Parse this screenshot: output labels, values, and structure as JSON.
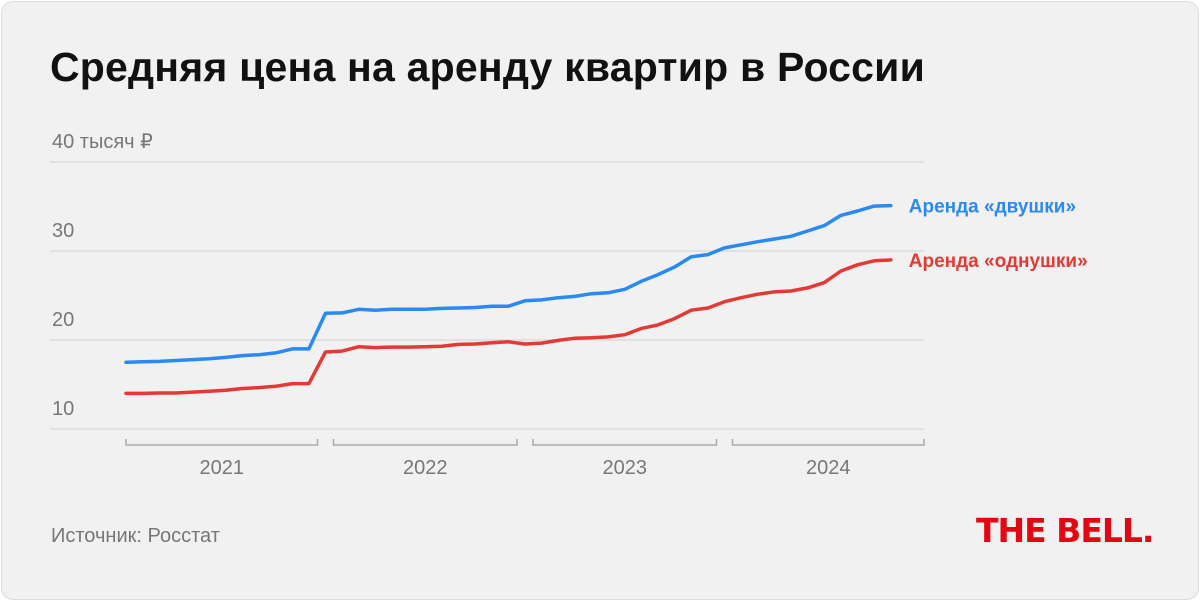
{
  "title": "Средняя цена на аренду квартир в России",
  "source": "Источник: Росстат",
  "logo": "THE BELL.",
  "colors": {
    "background": "#f1f1f1",
    "grid": "#dcdcdc",
    "series_two_room": "#2a8af4",
    "series_one_room": "#e53935",
    "axis_text": "#777777",
    "logo": "#e30613"
  },
  "chart_data": {
    "type": "line",
    "title": "Средняя цена на аренду квартир в России",
    "ylabel": "40 тысяч ₽",
    "ylim": [
      10,
      40
    ],
    "yticks": [
      10,
      20,
      30,
      40
    ],
    "ytick_labels": [
      "10",
      "20",
      "30",
      "40 тысяч ₽"
    ],
    "grid": true,
    "xlim": [
      0,
      48
    ],
    "year_groups": [
      {
        "label": "2021",
        "start": 0,
        "end": 12
      },
      {
        "label": "2022",
        "start": 12,
        "end": 24
      },
      {
        "label": "2023",
        "start": 24,
        "end": 36
      },
      {
        "label": "2024",
        "start": 36,
        "end": 48
      }
    ],
    "x": [
      0,
      1,
      2,
      3,
      4,
      5,
      6,
      7,
      8,
      9,
      10,
      11,
      12,
      13,
      14,
      15,
      16,
      17,
      18,
      19,
      20,
      21,
      22,
      23,
      24,
      25,
      26,
      27,
      28,
      29,
      30,
      31,
      32,
      33,
      34,
      35,
      36,
      37,
      38,
      39,
      40,
      41,
      42,
      43,
      44,
      45,
      46
    ],
    "series": [
      {
        "name": "Аренда «двушки»",
        "color": "#2a8af4",
        "values": [
          17.5,
          17.55,
          17.6,
          17.7,
          17.8,
          17.9,
          18.05,
          18.25,
          18.35,
          18.55,
          19.0,
          19.0,
          23.0,
          23.05,
          23.45,
          23.35,
          23.45,
          23.45,
          23.45,
          23.55,
          23.6,
          23.65,
          23.8,
          23.8,
          24.4,
          24.5,
          24.75,
          24.9,
          25.2,
          25.3,
          25.7,
          26.6,
          27.35,
          28.2,
          29.35,
          29.6,
          30.35,
          30.7,
          31.05,
          31.35,
          31.65,
          32.25,
          32.85,
          34.0,
          34.5,
          35.05,
          35.1
        ]
      },
      {
        "name": "Аренда «однушки»",
        "color": "#e53935",
        "values": [
          14.0,
          14.0,
          14.05,
          14.05,
          14.15,
          14.25,
          14.35,
          14.55,
          14.65,
          14.8,
          15.1,
          15.1,
          18.65,
          18.75,
          19.25,
          19.15,
          19.2,
          19.2,
          19.25,
          19.3,
          19.5,
          19.55,
          19.7,
          19.8,
          19.55,
          19.65,
          19.95,
          20.2,
          20.25,
          20.35,
          20.6,
          21.3,
          21.7,
          22.4,
          23.35,
          23.6,
          24.3,
          24.75,
          25.15,
          25.4,
          25.5,
          25.85,
          26.45,
          27.75,
          28.45,
          28.9,
          29.0
        ]
      }
    ]
  }
}
